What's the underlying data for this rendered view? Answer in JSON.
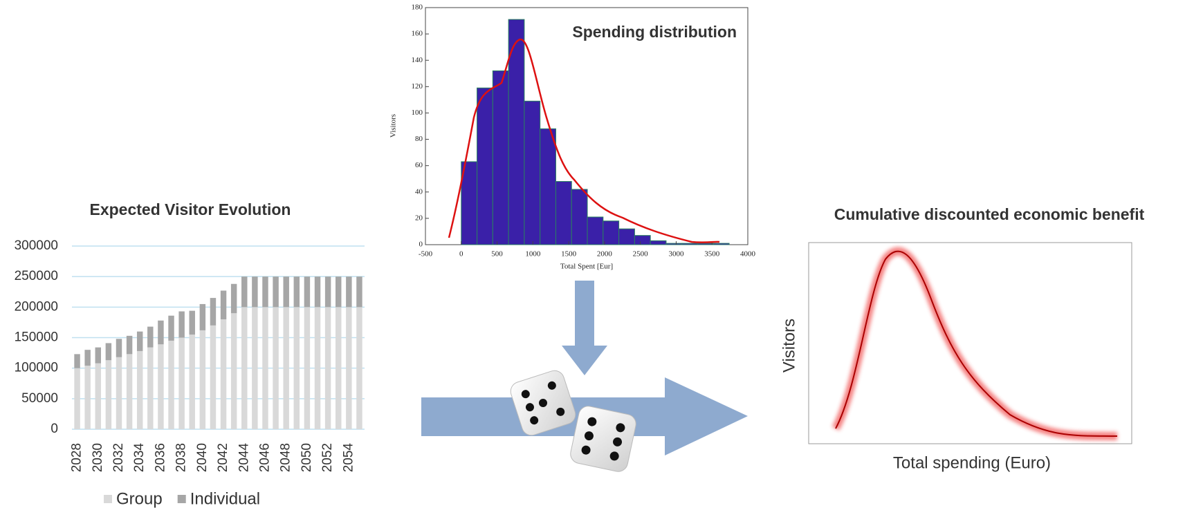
{
  "chart_data": [
    {
      "type": "stacked-bar",
      "title": "Expected Visitor Evolution",
      "categories": [
        "2028",
        null,
        "2030",
        null,
        "2032",
        null,
        "2034",
        null,
        "2036",
        null,
        "2038",
        null,
        "2040",
        null,
        "2042",
        null,
        "2044",
        null,
        "2046",
        null,
        "2048",
        null,
        "2050",
        null,
        "2052",
        null,
        "2054",
        null
      ],
      "series": [
        {
          "name": "Group",
          "color": "#d9d9d9",
          "values": [
            100000,
            104000,
            108000,
            113000,
            118000,
            123000,
            128000,
            134000,
            139000,
            145000,
            150000,
            155000,
            162000,
            170000,
            180000,
            190000,
            200000,
            200000,
            200000,
            200000,
            200000,
            200000,
            200000,
            200000,
            200000,
            200000,
            200000,
            200000
          ]
        },
        {
          "name": "Individual",
          "color": "#a6a6a6",
          "values": [
            23000,
            26000,
            26000,
            28000,
            30000,
            30000,
            32000,
            34000,
            39000,
            41000,
            43000,
            39000,
            43000,
            45000,
            47000,
            48000,
            50000,
            50000,
            50000,
            50000,
            50000,
            50000,
            50000,
            50000,
            50000,
            50000,
            50000,
            50000
          ]
        }
      ],
      "ylim": [
        0,
        300000
      ],
      "yticks": [
        0,
        50000,
        100000,
        150000,
        200000,
        250000,
        300000
      ],
      "grid": true
    },
    {
      "type": "histogram",
      "title": "Spending distribution",
      "xlabel": "Total Spent [Eur]",
      "ylabel": "Visitors",
      "bins": [
        0,
        220,
        440,
        660,
        880,
        1100,
        1320,
        1540,
        1760,
        1980,
        2200,
        2420,
        2640,
        2860,
        3080,
        3300,
        3520,
        3740
      ],
      "counts": [
        63,
        119,
        132,
        171,
        109,
        88,
        48,
        42,
        21,
        18,
        12,
        7,
        3,
        1,
        1,
        1,
        1
      ],
      "color": "#3a20a8",
      "xlim": [
        -500,
        4000
      ],
      "xticks": [
        -500,
        0,
        500,
        1000,
        1500,
        2000,
        2500,
        3000,
        3500,
        4000
      ],
      "ylim": [
        0,
        180
      ],
      "yticks": [
        0,
        20,
        40,
        60,
        80,
        100,
        120,
        140,
        160,
        180
      ]
    },
    {
      "type": "line",
      "title": "Cumulative discounted economic benefit",
      "xlabel": "Total spending (Euro)",
      "ylabel": "Visitors"
    }
  ]
}
